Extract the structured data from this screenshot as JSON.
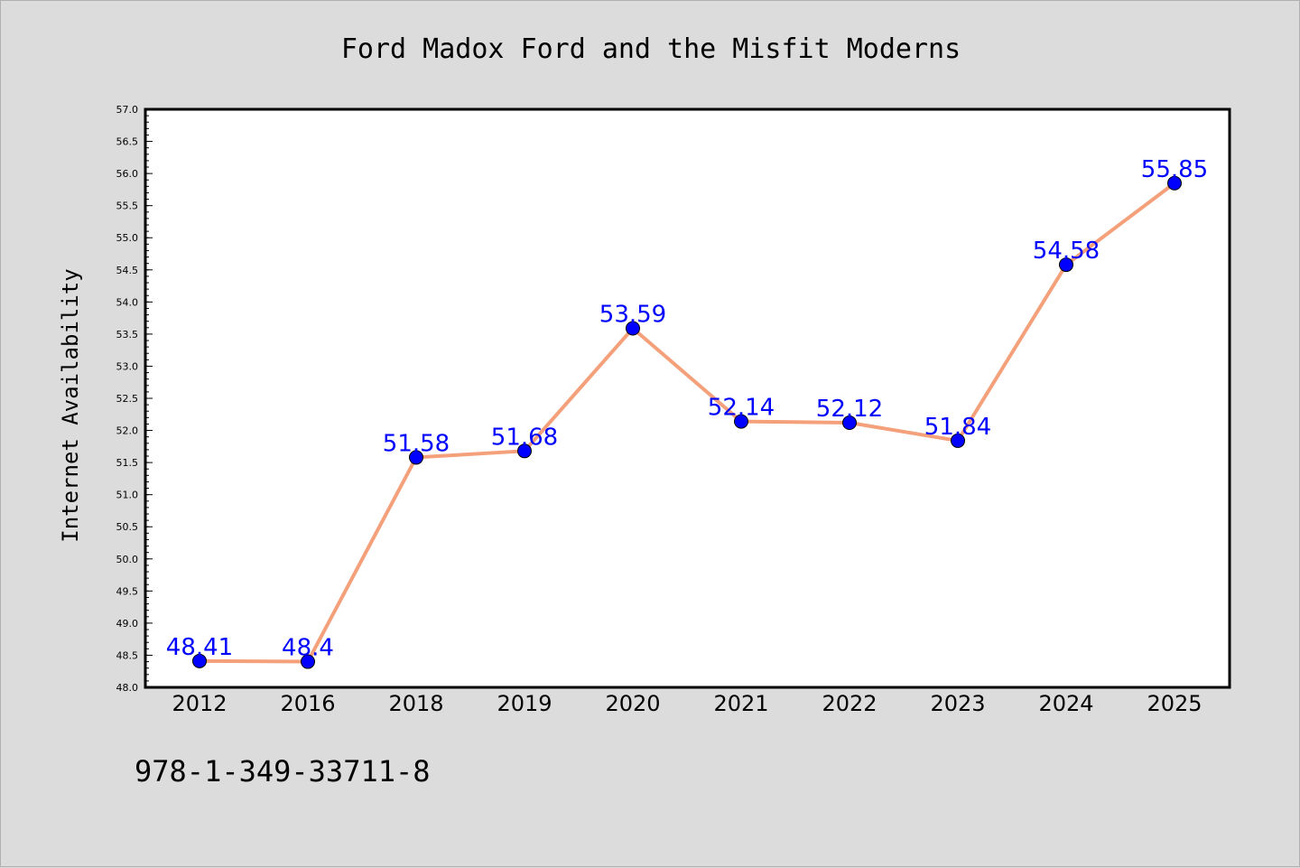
{
  "colors": {
    "background": "#dcdcdc",
    "plot_background": "#ffffff",
    "line": "#f4a07a",
    "marker": "#0000ff",
    "data_label": "#0000ff"
  },
  "footer_text": "978-1-349-33711-8",
  "chart_data": {
    "type": "line",
    "title": "Ford Madox Ford and the Misfit Moderns",
    "xlabel": "",
    "ylabel": "Internet Availability",
    "categories": [
      "2012",
      "2016",
      "2018",
      "2019",
      "2020",
      "2021",
      "2022",
      "2023",
      "2024",
      "2025"
    ],
    "series": [
      {
        "values": [
          48.41,
          48.4,
          51.58,
          51.68,
          53.59,
          52.14,
          52.12,
          51.84,
          54.58,
          55.85
        ],
        "labels": [
          "48.41",
          "48.4",
          "51.58",
          "51.68",
          "53.59",
          "52.14",
          "52.12",
          "51.84",
          "54.58",
          "55.85"
        ]
      }
    ],
    "ylim": [
      48.0,
      57.0
    ],
    "yticks": [
      "48.0",
      "48.5",
      "49.0",
      "49.5",
      "50.0",
      "50.5",
      "51.0",
      "51.5",
      "52.0",
      "52.5",
      "53.0",
      "53.5",
      "54.0",
      "54.5",
      "55.0",
      "55.5",
      "56.0",
      "56.5",
      "57.0"
    ],
    "grid": false,
    "legend": "none"
  }
}
